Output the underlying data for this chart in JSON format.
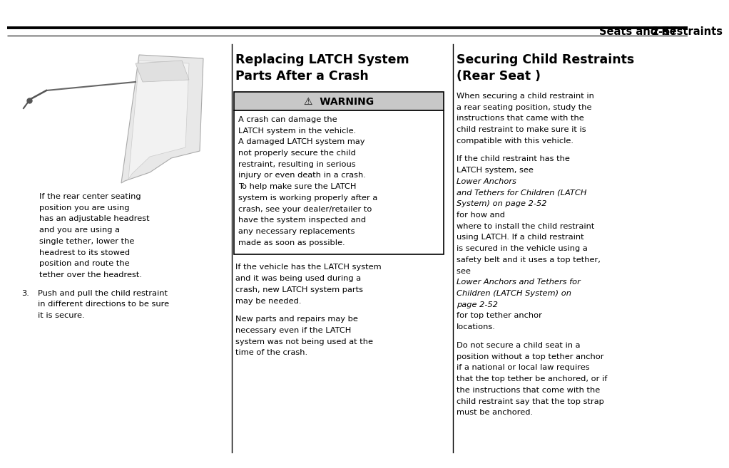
{
  "bg_color": "#ffffff",
  "header_text": "Seats and Restraints",
  "header_page": "2-57",
  "header_line_color": "#000000",
  "col1_caption": "If the rear center seating\nposition you are using\nhas an adjustable headrest\nand you are using a\nsingle tether, lower the\nheadrest to its stowed\nposition and route the\ntether over the headrest.",
  "col1_item3": "Push and pull the child restraint\nin different directions to be sure\nit is secure.",
  "col2_title_line1": "Replacing LATCH System",
  "col2_title_line2": "Parts After a Crash",
  "warning_title": "⚠  WARNING",
  "warning_body_lines": [
    "A crash can damage the",
    "LATCH system in the vehicle.",
    "A damaged LATCH system may",
    "not properly secure the child",
    "restraint, resulting in serious",
    "injury or even death in a crash.",
    "To help make sure the LATCH",
    "system is working properly after a",
    "crash, see your dealer/retailer to",
    "have the system inspected and",
    "any necessary replacements",
    "made as soon as possible."
  ],
  "col2_para1_lines": [
    "If the vehicle has the LATCH system",
    "and it was being used during a",
    "crash, new LATCH system parts",
    "may be needed."
  ],
  "col2_para2_lines": [
    "New parts and repairs may be",
    "necessary even if the LATCH",
    "system was not being used at the",
    "time of the crash."
  ],
  "col3_title_line1": "Securing Child Restraints",
  "col3_title_line2": "(Rear Seat )",
  "col3_para1_lines": [
    "When securing a child restraint in",
    "a rear seating position, study the",
    "instructions that came with the",
    "child restraint to make sure it is",
    "compatible with this vehicle."
  ],
  "col3_para2_segments": [
    {
      "text": "If the child restraint has the\nLATCH system, see ",
      "italic": false
    },
    {
      "text": "Lower Anchors\nand Tethers for Children (LATCH\nSystem) on page 2-52",
      "italic": true
    },
    {
      "text": " for how and\nwhere to install the child restraint\nusing LATCH. If a child restraint\nis secured in the vehicle using a\nsafety belt and it uses a top tether,\nsee ",
      "italic": false
    },
    {
      "text": "Lower Anchors and Tethers for\nChildren (LATCH System) on\npage 2-52",
      "italic": true
    },
    {
      "text": " for top tether anchor\nlocations.",
      "italic": false
    }
  ],
  "col3_para3_lines": [
    "Do not secure a child seat in a",
    "position without a top tether anchor",
    "if a national or local law requires",
    "that the top tether be anchored, or if",
    "the instructions that come with the",
    "child restraint say that the top strap",
    "must be anchored."
  ],
  "warning_bg": "#c8c8c8",
  "warning_border": "#000000",
  "warn_body_bg": "#ffffff",
  "divider_color": "#000000",
  "text_color": "#000000",
  "font_family": "DejaVu Sans",
  "font_size_header": 10.5,
  "font_size_col_title": 12.5,
  "font_size_body": 8.2,
  "font_size_warning_title": 10
}
